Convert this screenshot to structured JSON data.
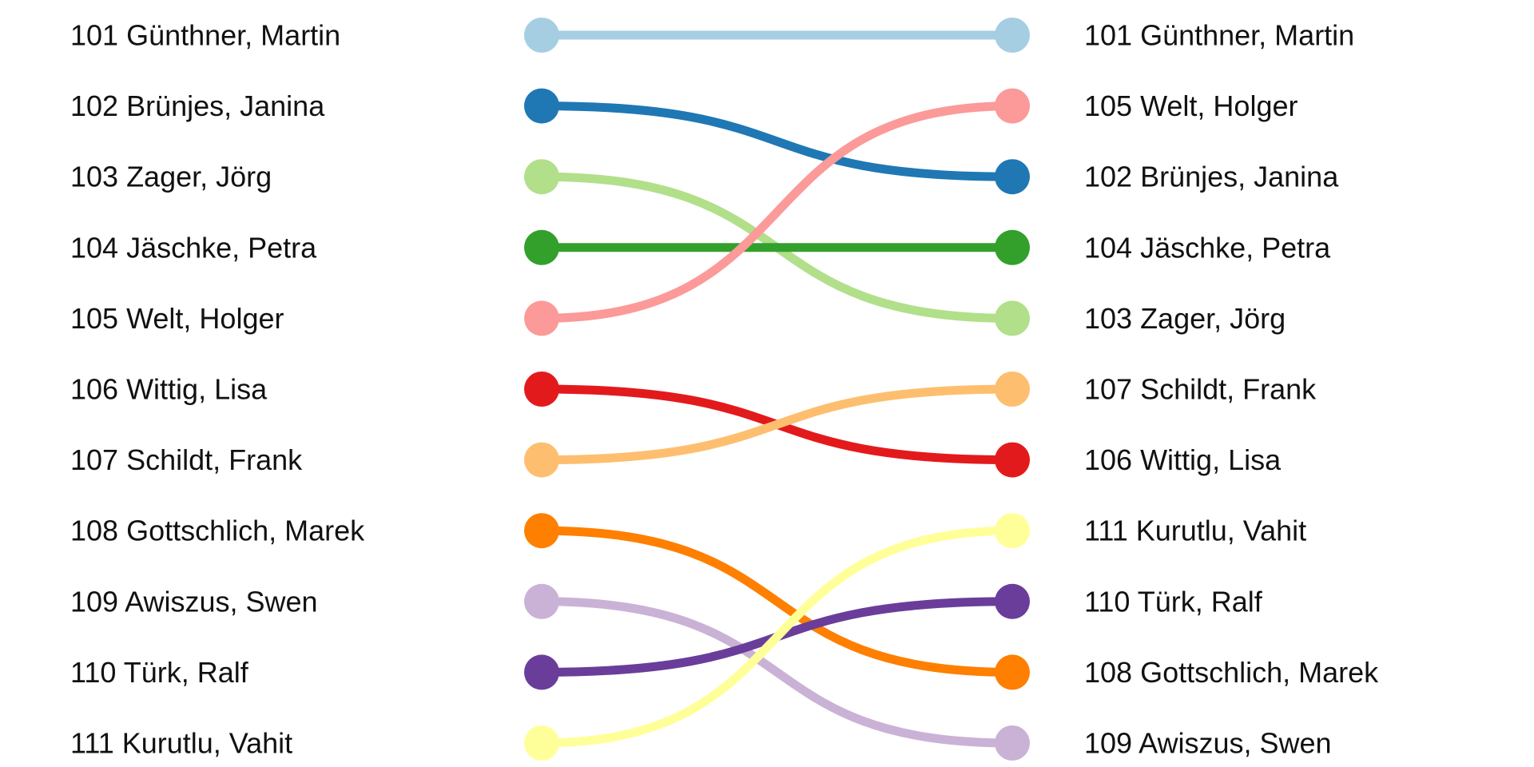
{
  "chart_data": {
    "type": "bump",
    "title": "",
    "xlabel": "",
    "ylabel": "",
    "grid": false,
    "legend": "none",
    "columns": [
      "",
      ""
    ],
    "items": [
      {
        "id": "101",
        "name": "Günthner, Martin",
        "label": "101 Günthner, Martin",
        "rank_left": 1,
        "rank_right": 1,
        "color": "#a6cee3"
      },
      {
        "id": "102",
        "name": "Brünjes, Janina",
        "label": "102 Brünjes, Janina",
        "rank_left": 2,
        "rank_right": 3,
        "color": "#1f78b4"
      },
      {
        "id": "103",
        "name": "Zager, Jörg",
        "label": "103 Zager, Jörg",
        "rank_left": 3,
        "rank_right": 5,
        "color": "#b2df8a"
      },
      {
        "id": "104",
        "name": "Jäschke, Petra",
        "label": "104 Jäschke, Petra",
        "rank_left": 4,
        "rank_right": 4,
        "color": "#33a02c"
      },
      {
        "id": "105",
        "name": "Welt, Holger",
        "label": "105 Welt, Holger",
        "rank_left": 5,
        "rank_right": 2,
        "color": "#fb9a99"
      },
      {
        "id": "106",
        "name": "Wittig, Lisa",
        "label": "106 Wittig, Lisa",
        "rank_left": 6,
        "rank_right": 7,
        "color": "#e31a1c"
      },
      {
        "id": "107",
        "name": "Schildt, Frank",
        "label": "107 Schildt, Frank",
        "rank_left": 7,
        "rank_right": 6,
        "color": "#fdbf6f"
      },
      {
        "id": "108",
        "name": "Gottschlich, Marek",
        "label": "108 Gottschlich, Marek",
        "rank_left": 8,
        "rank_right": 10,
        "color": "#ff7f00"
      },
      {
        "id": "109",
        "name": "Awiszus, Swen",
        "label": "109 Awiszus, Swen",
        "rank_left": 9,
        "rank_right": 11,
        "color": "#cab2d6"
      },
      {
        "id": "110",
        "name": "Türk, Ralf",
        "label": "110 Türk, Ralf",
        "rank_left": 10,
        "rank_right": 9,
        "color": "#6a3d9a"
      },
      {
        "id": "111",
        "name": "Kurutlu, Vahit",
        "label": "111 Kurutlu, Vahit",
        "rank_left": 11,
        "rank_right": 8,
        "color": "#ffff99"
      }
    ]
  }
}
